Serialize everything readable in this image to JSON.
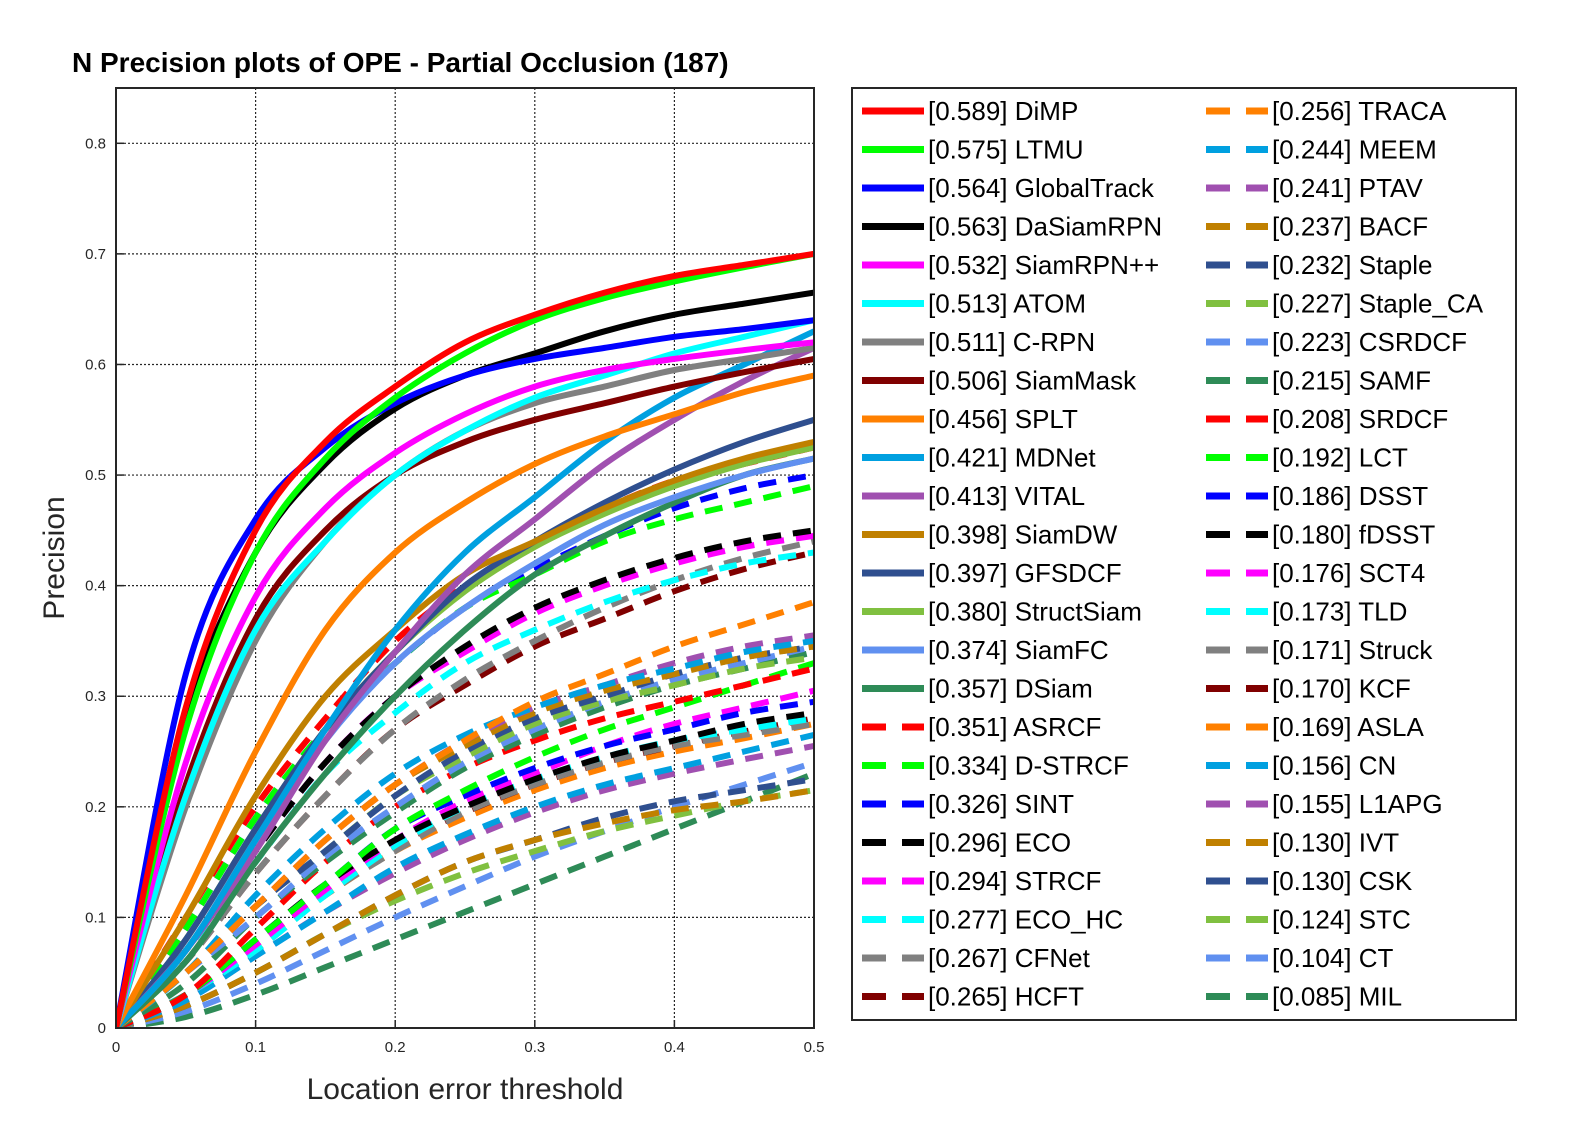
{
  "chart_data": {
    "type": "line",
    "title": "N Precision plots of OPE - Partial Occlusion (187)",
    "xlabel": "Location error threshold",
    "ylabel": "Precision",
    "xlim": [
      0,
      0.5
    ],
    "ylim": [
      0,
      0.85
    ],
    "xticks": [
      0,
      0.1,
      0.2,
      0.3,
      0.4,
      0.5
    ],
    "xtick_labels": [
      "0",
      "0.1",
      "0.2",
      "0.3",
      "0.4",
      "0.5"
    ],
    "yticks": [
      0,
      0.1,
      0.2,
      0.3,
      0.4,
      0.5,
      0.6,
      0.7,
      0.8
    ],
    "ytick_labels": [
      "0",
      "0.1",
      "0.2",
      "0.3",
      "0.4",
      "0.5",
      "0.6",
      "0.7",
      "0.8"
    ],
    "grid": true,
    "legend_position": "outside-right",
    "x": [
      0,
      0.05,
      0.1,
      0.15,
      0.2,
      0.25,
      0.3,
      0.35,
      0.4,
      0.45,
      0.5
    ],
    "series": [
      {
        "name": "[0.589] DiMP",
        "color": "#ff0000",
        "style": "solid",
        "values": [
          0,
          0.29,
          0.45,
          0.53,
          0.58,
          0.62,
          0.645,
          0.665,
          0.68,
          0.69,
          0.7
        ]
      },
      {
        "name": "[0.575] LTMU",
        "color": "#00ff00",
        "style": "solid",
        "values": [
          0,
          0.27,
          0.43,
          0.515,
          0.57,
          0.61,
          0.64,
          0.66,
          0.675,
          0.688,
          0.7
        ]
      },
      {
        "name": "[0.564] GlobalTrack",
        "color": "#0000ff",
        "style": "solid",
        "values": [
          0,
          0.32,
          0.46,
          0.525,
          0.565,
          0.59,
          0.605,
          0.615,
          0.625,
          0.632,
          0.64
        ]
      },
      {
        "name": "[0.563] DaSiamRPN",
        "color": "#000000",
        "style": "solid",
        "values": [
          0,
          0.28,
          0.43,
          0.51,
          0.56,
          0.59,
          0.61,
          0.63,
          0.645,
          0.655,
          0.665
        ]
      },
      {
        "name": "[0.532] SiamRPN++",
        "color": "#ff00ff",
        "style": "solid",
        "values": [
          0,
          0.24,
          0.39,
          0.47,
          0.52,
          0.555,
          0.58,
          0.595,
          0.605,
          0.613,
          0.62
        ]
      },
      {
        "name": "[0.513] ATOM",
        "color": "#00ffff",
        "style": "solid",
        "values": [
          0,
          0.21,
          0.36,
          0.44,
          0.5,
          0.54,
          0.57,
          0.59,
          0.61,
          0.625,
          0.64
        ]
      },
      {
        "name": "[0.511] C-RPN",
        "color": "#808080",
        "style": "solid",
        "values": [
          0,
          0.2,
          0.35,
          0.44,
          0.5,
          0.54,
          0.565,
          0.58,
          0.595,
          0.605,
          0.615
        ]
      },
      {
        "name": "[0.506] SiamMask",
        "color": "#800000",
        "style": "solid",
        "values": [
          0,
          0.22,
          0.37,
          0.45,
          0.5,
          0.53,
          0.55,
          0.565,
          0.58,
          0.593,
          0.605
        ]
      },
      {
        "name": "[0.456] SPLT",
        "color": "#ff8000",
        "style": "solid",
        "values": [
          0,
          0.12,
          0.25,
          0.36,
          0.43,
          0.475,
          0.51,
          0.535,
          0.555,
          0.575,
          0.59
        ]
      },
      {
        "name": "[0.421] MDNet",
        "color": "#00a0e0",
        "style": "solid",
        "values": [
          0,
          0.07,
          0.17,
          0.27,
          0.36,
          0.43,
          0.48,
          0.53,
          0.57,
          0.6,
          0.63
        ]
      },
      {
        "name": "[0.413] VITAL",
        "color": "#a050b0",
        "style": "solid",
        "values": [
          0,
          0.07,
          0.16,
          0.26,
          0.34,
          0.41,
          0.46,
          0.51,
          0.55,
          0.585,
          0.615
        ]
      },
      {
        "name": "[0.398] SiamDW",
        "color": "#c08000",
        "style": "solid",
        "values": [
          0,
          0.1,
          0.21,
          0.3,
          0.36,
          0.41,
          0.44,
          0.47,
          0.495,
          0.515,
          0.53
        ]
      },
      {
        "name": "[0.397] GFSDCF",
        "color": "#2f4f8f",
        "style": "solid",
        "values": [
          0,
          0.08,
          0.18,
          0.27,
          0.34,
          0.4,
          0.44,
          0.475,
          0.505,
          0.53,
          0.55
        ]
      },
      {
        "name": "[0.380] StructSiam",
        "color": "#80c040",
        "style": "solid",
        "values": [
          0,
          0.08,
          0.18,
          0.27,
          0.34,
          0.395,
          0.435,
          0.465,
          0.49,
          0.51,
          0.525
        ]
      },
      {
        "name": "[0.374] SiamFC",
        "color": "#6090f0",
        "style": "solid",
        "values": [
          0,
          0.07,
          0.17,
          0.26,
          0.33,
          0.38,
          0.42,
          0.455,
          0.48,
          0.5,
          0.515
        ]
      },
      {
        "name": "[0.357] DSiam",
        "color": "#2e8b57",
        "style": "solid",
        "values": [
          0,
          0.06,
          0.15,
          0.23,
          0.3,
          0.36,
          0.41,
          0.445,
          0.475,
          0.5,
          0.515
        ]
      },
      {
        "name": "[0.351] ASRCF",
        "color": "#ff0000",
        "style": "dashed",
        "values": [
          0,
          0.1,
          0.2,
          0.28,
          0.35,
          0.4,
          0.44,
          0.47,
          0.495,
          0.51,
          0.525
        ]
      },
      {
        "name": "[0.334] D-STRCF",
        "color": "#00ff00",
        "style": "dashed",
        "values": [
          0,
          0.09,
          0.19,
          0.27,
          0.33,
          0.38,
          0.41,
          0.44,
          0.46,
          0.475,
          0.49
        ]
      },
      {
        "name": "[0.326] SINT",
        "color": "#0000ff",
        "style": "dashed",
        "values": [
          0,
          0.09,
          0.19,
          0.27,
          0.33,
          0.38,
          0.415,
          0.445,
          0.47,
          0.488,
          0.5
        ]
      },
      {
        "name": "[0.296] ECO",
        "color": "#000000",
        "style": "dashed",
        "values": [
          0,
          0.07,
          0.16,
          0.24,
          0.3,
          0.345,
          0.38,
          0.405,
          0.425,
          0.44,
          0.45
        ]
      },
      {
        "name": "[0.294] STRCF",
        "color": "#ff00ff",
        "style": "dashed",
        "values": [
          0,
          0.07,
          0.16,
          0.24,
          0.3,
          0.34,
          0.375,
          0.4,
          0.42,
          0.435,
          0.445
        ]
      },
      {
        "name": "[0.277] ECO_HC",
        "color": "#00ffff",
        "style": "dashed",
        "values": [
          0,
          0.07,
          0.15,
          0.23,
          0.285,
          0.33,
          0.36,
          0.385,
          0.405,
          0.42,
          0.43
        ]
      },
      {
        "name": "[0.267] CFNet",
        "color": "#808080",
        "style": "dashed",
        "values": [
          0,
          0.06,
          0.14,
          0.21,
          0.27,
          0.315,
          0.35,
          0.38,
          0.405,
          0.425,
          0.44
        ]
      },
      {
        "name": "[0.265] HCFT",
        "color": "#800000",
        "style": "dashed",
        "values": [
          0,
          0.06,
          0.14,
          0.21,
          0.27,
          0.31,
          0.345,
          0.37,
          0.395,
          0.415,
          0.43
        ]
      },
      {
        "name": "[0.256] TRACA",
        "color": "#ff8000",
        "style": "dashed",
        "values": [
          0,
          0.05,
          0.11,
          0.17,
          0.22,
          0.26,
          0.295,
          0.32,
          0.345,
          0.365,
          0.385
        ]
      },
      {
        "name": "[0.244] MEEM",
        "color": "#00a0e0",
        "style": "dashed",
        "values": [
          0,
          0.05,
          0.12,
          0.18,
          0.23,
          0.265,
          0.29,
          0.31,
          0.325,
          0.34,
          0.35
        ]
      },
      {
        "name": "[0.241] PTAV",
        "color": "#a050b0",
        "style": "dashed",
        "values": [
          0,
          0.05,
          0.11,
          0.17,
          0.22,
          0.26,
          0.29,
          0.31,
          0.33,
          0.345,
          0.355
        ]
      },
      {
        "name": "[0.237] BACF",
        "color": "#c08000",
        "style": "dashed",
        "values": [
          0,
          0.05,
          0.11,
          0.17,
          0.22,
          0.255,
          0.285,
          0.305,
          0.32,
          0.335,
          0.345
        ]
      },
      {
        "name": "[0.232] Staple",
        "color": "#2f4f8f",
        "style": "dashed",
        "values": [
          0,
          0.05,
          0.11,
          0.16,
          0.21,
          0.25,
          0.28,
          0.3,
          0.32,
          0.335,
          0.345
        ]
      },
      {
        "name": "[0.227] Staple_CA",
        "color": "#80c040",
        "style": "dashed",
        "values": [
          0,
          0.05,
          0.11,
          0.16,
          0.21,
          0.245,
          0.275,
          0.295,
          0.31,
          0.325,
          0.335
        ]
      },
      {
        "name": "[0.223] CSRDCF",
        "color": "#6090f0",
        "style": "dashed",
        "values": [
          0,
          0.05,
          0.1,
          0.155,
          0.2,
          0.24,
          0.27,
          0.295,
          0.315,
          0.33,
          0.345
        ]
      },
      {
        "name": "[0.215] SAMF",
        "color": "#2e8b57",
        "style": "dashed",
        "values": [
          0,
          0.04,
          0.1,
          0.15,
          0.195,
          0.235,
          0.265,
          0.29,
          0.31,
          0.325,
          0.34
        ]
      },
      {
        "name": "[0.208] SRDCF",
        "color": "#ff0000",
        "style": "dashed",
        "values": [
          0,
          0.03,
          0.09,
          0.15,
          0.2,
          0.235,
          0.26,
          0.28,
          0.295,
          0.31,
          0.325
        ]
      },
      {
        "name": "[0.192] LCT",
        "color": "#00ff00",
        "style": "dashed",
        "values": [
          0,
          0.03,
          0.08,
          0.13,
          0.18,
          0.215,
          0.245,
          0.27,
          0.29,
          0.31,
          0.33
        ]
      },
      {
        "name": "[0.186] DSST",
        "color": "#0000ff",
        "style": "dashed",
        "values": [
          0,
          0.03,
          0.08,
          0.13,
          0.18,
          0.21,
          0.235,
          0.255,
          0.27,
          0.285,
          0.295
        ]
      },
      {
        "name": "[0.180] fDSST",
        "color": "#000000",
        "style": "dashed",
        "values": [
          0,
          0.03,
          0.08,
          0.13,
          0.17,
          0.2,
          0.225,
          0.245,
          0.26,
          0.275,
          0.285
        ]
      },
      {
        "name": "[0.176] SCT4",
        "color": "#ff00ff",
        "style": "dashed",
        "values": [
          0,
          0.03,
          0.075,
          0.125,
          0.17,
          0.205,
          0.23,
          0.255,
          0.275,
          0.29,
          0.305
        ]
      },
      {
        "name": "[0.173] TLD",
        "color": "#00ffff",
        "style": "dashed",
        "values": [
          0,
          0.03,
          0.07,
          0.12,
          0.165,
          0.2,
          0.225,
          0.245,
          0.26,
          0.27,
          0.28
        ]
      },
      {
        "name": "[0.171] Struck",
        "color": "#808080",
        "style": "dashed",
        "values": [
          0,
          0.03,
          0.07,
          0.12,
          0.16,
          0.195,
          0.22,
          0.24,
          0.255,
          0.265,
          0.275
        ]
      },
      {
        "name": "[0.170] KCF",
        "color": "#800000",
        "style": "dashed",
        "values": [
          0,
          0.03,
          0.075,
          0.125,
          0.165,
          0.195,
          0.22,
          0.24,
          0.255,
          0.268,
          0.28
        ]
      },
      {
        "name": "[0.169] ASLA",
        "color": "#ff8000",
        "style": "dashed",
        "values": [
          0,
          0.03,
          0.075,
          0.12,
          0.16,
          0.19,
          0.215,
          0.235,
          0.25,
          0.262,
          0.275
        ]
      },
      {
        "name": "[0.156] CN",
        "color": "#00a0e0",
        "style": "dashed",
        "values": [
          0,
          0.025,
          0.065,
          0.105,
          0.145,
          0.175,
          0.2,
          0.22,
          0.235,
          0.25,
          0.265
        ]
      },
      {
        "name": "[0.155] L1APG",
        "color": "#a050b0",
        "style": "dashed",
        "values": [
          0,
          0.025,
          0.065,
          0.105,
          0.14,
          0.17,
          0.195,
          0.215,
          0.23,
          0.243,
          0.255
        ]
      },
      {
        "name": "[0.130] IVT",
        "color": "#c08000",
        "style": "dashed",
        "values": [
          0,
          0.02,
          0.05,
          0.085,
          0.12,
          0.15,
          0.17,
          0.185,
          0.197,
          0.205,
          0.215
        ]
      },
      {
        "name": "[0.130] CSK",
        "color": "#2f4f8f",
        "style": "dashed",
        "values": [
          0,
          0.02,
          0.05,
          0.085,
          0.12,
          0.15,
          0.17,
          0.19,
          0.205,
          0.215,
          0.225
        ]
      },
      {
        "name": "[0.124] STC",
        "color": "#80c040",
        "style": "dashed",
        "values": [
          0,
          0.02,
          0.05,
          0.085,
          0.115,
          0.14,
          0.16,
          0.178,
          0.192,
          0.205,
          0.215
        ]
      },
      {
        "name": "[0.104] CT",
        "color": "#6090f0",
        "style": "dashed",
        "values": [
          0,
          0.015,
          0.04,
          0.07,
          0.1,
          0.128,
          0.155,
          0.178,
          0.2,
          0.22,
          0.24
        ]
      },
      {
        "name": "[0.085] MIL",
        "color": "#2e8b57",
        "style": "dashed",
        "values": [
          0,
          0.01,
          0.03,
          0.055,
          0.08,
          0.105,
          0.13,
          0.155,
          0.18,
          0.205,
          0.23
        ]
      }
    ]
  }
}
